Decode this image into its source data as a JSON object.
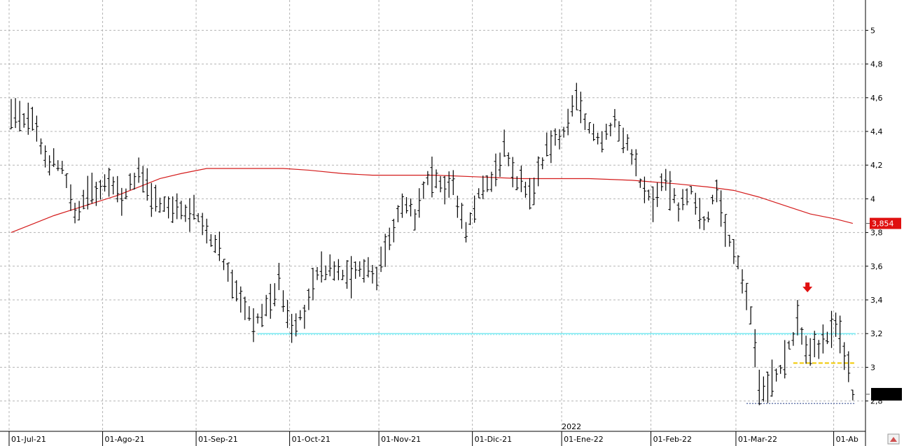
{
  "chart_data": {
    "type": "ohlc",
    "title": "",
    "xlabel": "",
    "ylabel": "",
    "ylim": [
      2.62,
      5.18
    ],
    "y_ticks": [
      "2,8",
      "3",
      "3,2",
      "3,4",
      "3,6",
      "3,8",
      "4",
      "4,2",
      "4,4",
      "4,6",
      "4,8",
      "5"
    ],
    "y_tick_values": [
      2.8,
      3.0,
      3.2,
      3.4,
      3.6,
      3.8,
      4.0,
      4.2,
      4.4,
      4.6,
      4.8,
      5.0
    ],
    "x_ticks": [
      "01-Jul-21",
      "01-Ago-21",
      "01-Sep-21",
      "01-Oct-21",
      "01-Nov-21",
      "01-Dic-21",
      "01-Ene-22",
      "01-Feb-22",
      "01-Mar-22",
      "01-Ab"
    ],
    "x_tick_bars": [
      0,
      22,
      44,
      66,
      87,
      109,
      130,
      151,
      171,
      194
    ],
    "year_label": "2022",
    "year_label_bar": 130,
    "grid": true,
    "last_price_label": "3,854",
    "last_price_value": 3.854,
    "current_price_box_value": 2.84,
    "colors": {
      "bars": "#000000",
      "moving_average": "#d41c1c",
      "price_label_bg": "#e01010",
      "support_line": "#7fe8f0",
      "yellow_line": "#f0c800",
      "low_line": "#6677aa",
      "arrow": "#e01010",
      "grid": "#b4b4b4"
    },
    "support_level": {
      "value": 3.2,
      "from_bar": 58,
      "to_bar": 198
    },
    "resistance_level": {
      "value": 3.025,
      "from_bar": 184,
      "to_bar": 198
    },
    "low_level": {
      "value": 2.785,
      "from_bar": 173,
      "to_bar": 198
    },
    "arrow_marker": {
      "bar": 188,
      "value": 3.47,
      "direction": "down"
    },
    "moving_average": [
      {
        "bar": 0,
        "value": 3.8
      },
      {
        "bar": 5,
        "value": 3.85
      },
      {
        "bar": 10,
        "value": 3.9
      },
      {
        "bar": 15,
        "value": 3.94
      },
      {
        "bar": 20,
        "value": 3.98
      },
      {
        "bar": 25,
        "value": 4.02
      },
      {
        "bar": 30,
        "value": 4.07
      },
      {
        "bar": 35,
        "value": 4.12
      },
      {
        "bar": 40,
        "value": 4.15
      },
      {
        "bar": 46,
        "value": 4.18
      },
      {
        "bar": 52,
        "value": 4.18
      },
      {
        "bar": 58,
        "value": 4.18
      },
      {
        "bar": 64,
        "value": 4.18
      },
      {
        "bar": 70,
        "value": 4.17
      },
      {
        "bar": 78,
        "value": 4.15
      },
      {
        "bar": 85,
        "value": 4.14
      },
      {
        "bar": 92,
        "value": 4.14
      },
      {
        "bar": 100,
        "value": 4.14
      },
      {
        "bar": 110,
        "value": 4.13
      },
      {
        "bar": 120,
        "value": 4.12
      },
      {
        "bar": 128,
        "value": 4.12
      },
      {
        "bar": 136,
        "value": 4.12
      },
      {
        "bar": 146,
        "value": 4.11
      },
      {
        "bar": 156,
        "value": 4.09
      },
      {
        "bar": 164,
        "value": 4.07
      },
      {
        "bar": 170,
        "value": 4.05
      },
      {
        "bar": 176,
        "value": 4.01
      },
      {
        "bar": 182,
        "value": 3.96
      },
      {
        "bar": 188,
        "value": 3.91
      },
      {
        "bar": 194,
        "value": 3.88
      },
      {
        "bar": 198,
        "value": 3.854
      }
    ],
    "price_path": [
      {
        "bar": 0,
        "value": 4.5
      },
      {
        "bar": 5,
        "value": 4.45
      },
      {
        "bar": 8,
        "value": 4.25
      },
      {
        "bar": 12,
        "value": 4.18
      },
      {
        "bar": 15,
        "value": 3.9
      },
      {
        "bar": 19,
        "value": 4.05
      },
      {
        "bar": 23,
        "value": 4.07
      },
      {
        "bar": 26,
        "value": 4.02
      },
      {
        "bar": 30,
        "value": 4.15
      },
      {
        "bar": 33,
        "value": 4.0
      },
      {
        "bar": 37,
        "value": 3.93
      },
      {
        "bar": 42,
        "value": 3.95
      },
      {
        "bar": 45,
        "value": 3.85
      },
      {
        "bar": 49,
        "value": 3.7
      },
      {
        "bar": 53,
        "value": 3.45
      },
      {
        "bar": 57,
        "value": 3.25
      },
      {
        "bar": 60,
        "value": 3.35
      },
      {
        "bar": 63,
        "value": 3.5
      },
      {
        "bar": 66,
        "value": 3.25
      },
      {
        "bar": 69,
        "value": 3.3
      },
      {
        "bar": 72,
        "value": 3.55
      },
      {
        "bar": 76,
        "value": 3.6
      },
      {
        "bar": 80,
        "value": 3.55
      },
      {
        "bar": 83,
        "value": 3.6
      },
      {
        "bar": 86,
        "value": 3.55
      },
      {
        "bar": 89,
        "value": 3.8
      },
      {
        "bar": 92,
        "value": 3.95
      },
      {
        "bar": 95,
        "value": 3.9
      },
      {
        "bar": 98,
        "value": 4.1
      },
      {
        "bar": 101,
        "value": 4.1
      },
      {
        "bar": 104,
        "value": 4.05
      },
      {
        "bar": 107,
        "value": 3.8
      },
      {
        "bar": 110,
        "value": 4.05
      },
      {
        "bar": 113,
        "value": 4.1
      },
      {
        "bar": 116,
        "value": 4.3
      },
      {
        "bar": 119,
        "value": 4.1
      },
      {
        "bar": 123,
        "value": 4.05
      },
      {
        "bar": 126,
        "value": 4.3
      },
      {
        "bar": 130,
        "value": 4.4
      },
      {
        "bar": 133,
        "value": 4.6
      },
      {
        "bar": 136,
        "value": 4.4
      },
      {
        "bar": 139,
        "value": 4.35
      },
      {
        "bar": 142,
        "value": 4.45
      },
      {
        "bar": 145,
        "value": 4.35
      },
      {
        "bar": 148,
        "value": 4.1
      },
      {
        "bar": 151,
        "value": 4.0
      },
      {
        "bar": 154,
        "value": 4.15
      },
      {
        "bar": 157,
        "value": 3.95
      },
      {
        "bar": 160,
        "value": 4.05
      },
      {
        "bar": 163,
        "value": 3.85
      },
      {
        "bar": 166,
        "value": 4.05
      },
      {
        "bar": 168,
        "value": 3.8
      },
      {
        "bar": 171,
        "value": 3.65
      },
      {
        "bar": 174,
        "value": 3.3
      },
      {
        "bar": 176,
        "value": 2.9
      },
      {
        "bar": 179,
        "value": 2.9
      },
      {
        "bar": 182,
        "value": 3.05
      },
      {
        "bar": 185,
        "value": 3.25
      },
      {
        "bar": 188,
        "value": 3.1
      },
      {
        "bar": 191,
        "value": 3.15
      },
      {
        "bar": 194,
        "value": 3.25
      },
      {
        "bar": 196,
        "value": 3.1
      },
      {
        "bar": 198,
        "value": 2.85
      }
    ],
    "bar_count": 199
  }
}
